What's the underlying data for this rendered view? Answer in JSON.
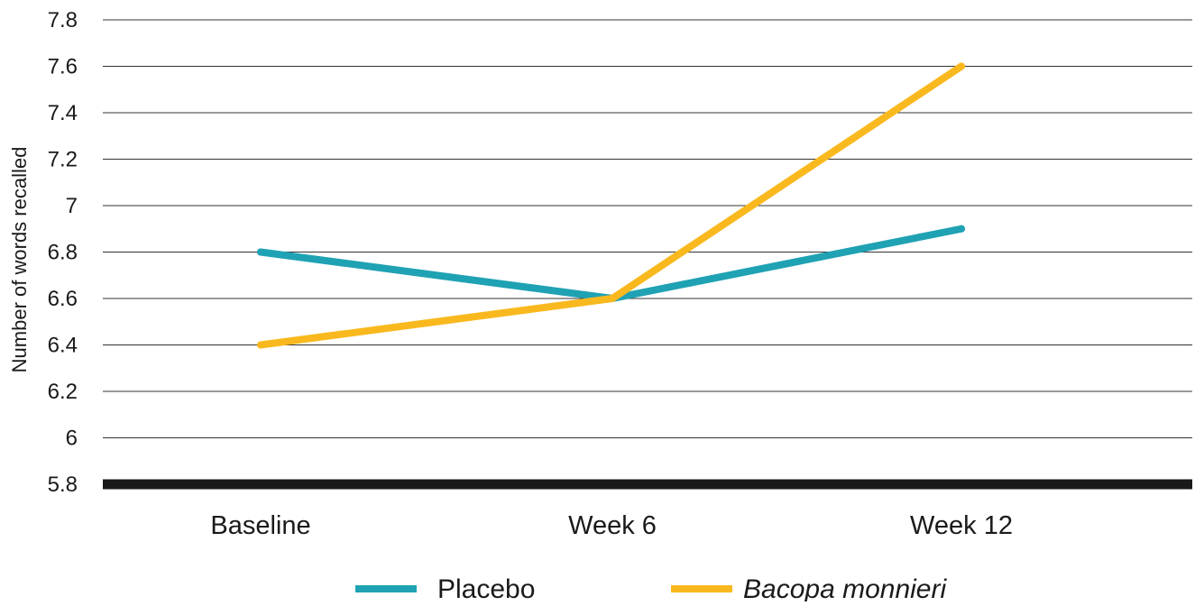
{
  "chart_data": {
    "type": "line",
    "title": "",
    "xlabel": "",
    "ylabel": "Number of words recalled",
    "categories": [
      "Baseline",
      "Week 6",
      "Week 12"
    ],
    "ylim": [
      5.8,
      7.8
    ],
    "yticks": [
      5.8,
      6,
      6.2,
      6.4,
      6.6,
      6.8,
      7,
      7.2,
      7.4,
      7.6,
      7.8
    ],
    "ytick_labels": [
      "5.8",
      "6",
      "6.2",
      "6.4",
      "6.6",
      "6.8",
      "7",
      "7.2",
      "7.4",
      "7.6",
      "7.8"
    ],
    "grid": true,
    "legend_position": "bottom",
    "series": [
      {
        "name": "Placebo",
        "values": [
          6.8,
          6.6,
          6.9
        ],
        "color": "#1fa2b3",
        "italic": false
      },
      {
        "name": "Bacopa monnieri",
        "values": [
          6.4,
          6.6,
          7.6
        ],
        "color": "#f9b91e",
        "italic": true
      }
    ],
    "gridline_color": "#333333",
    "baseline_color": "#1a1a1a"
  }
}
